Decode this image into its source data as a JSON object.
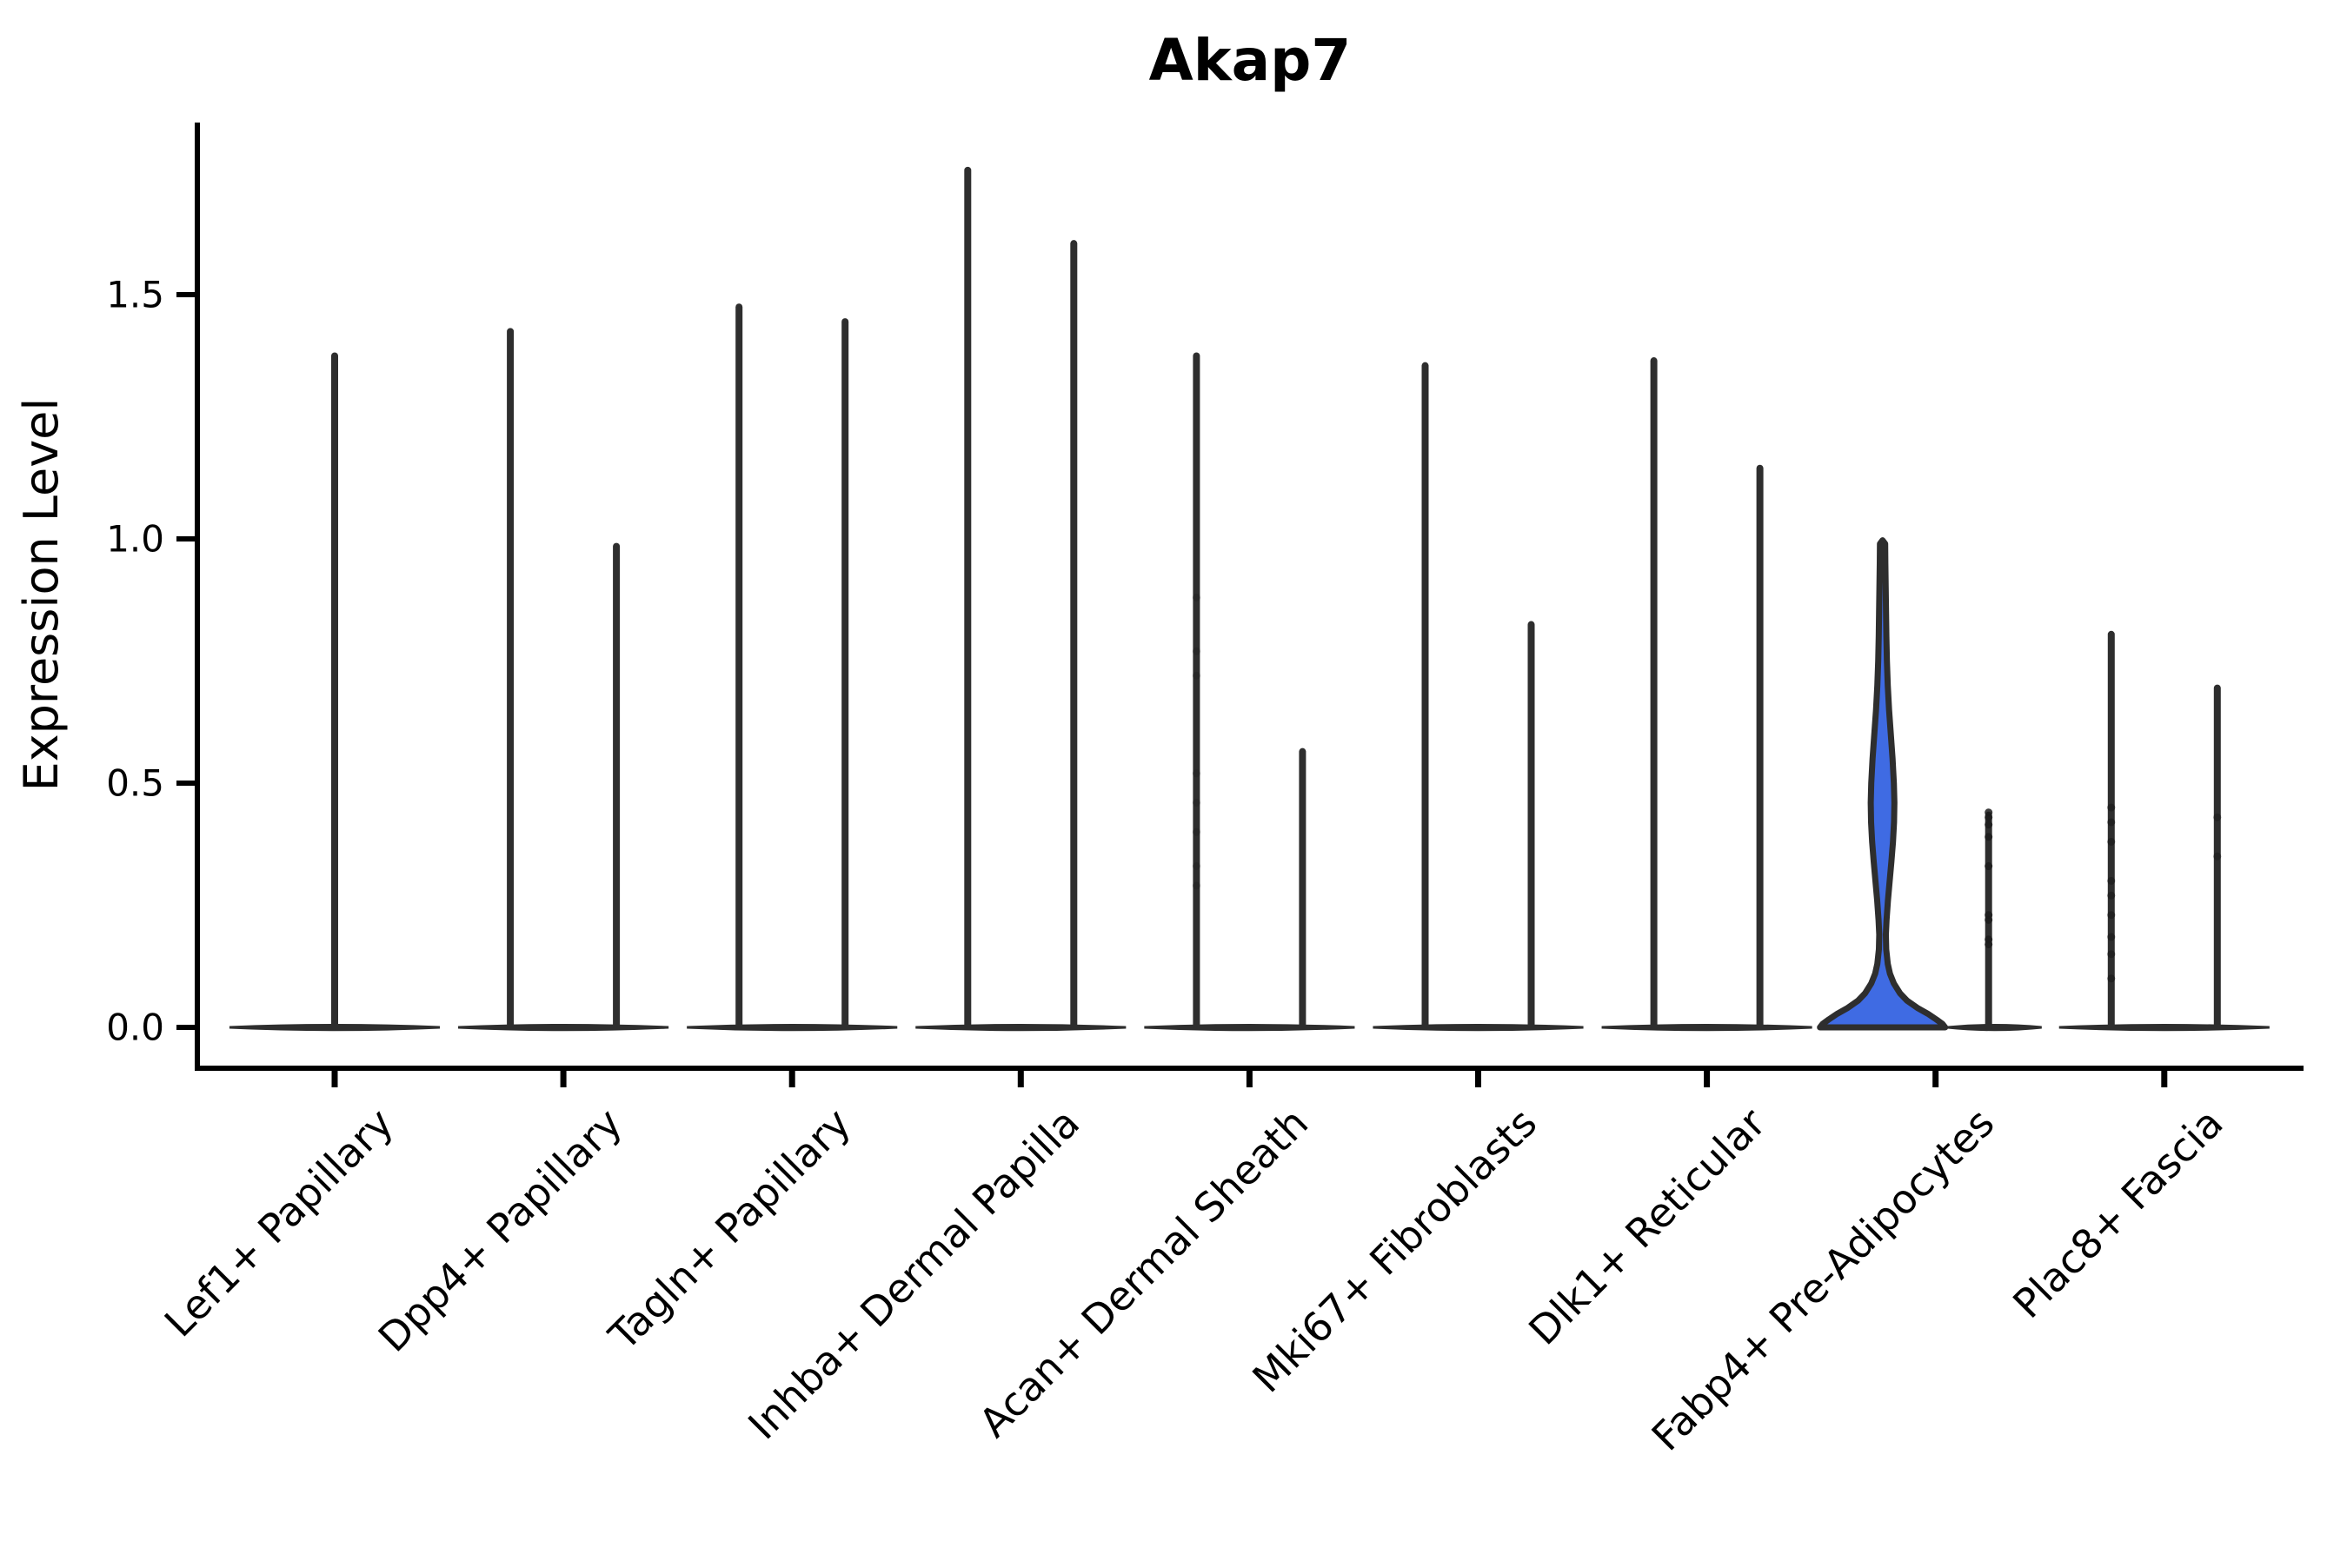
{
  "chart_data": {
    "type": "violin",
    "title": "Akap7",
    "ylabel": "Expression Level",
    "xlabel": "",
    "ytick_labels": [
      "0.0",
      "0.5",
      "1.0",
      "1.5"
    ],
    "ytick_values": [
      0.0,
      0.5,
      1.0,
      1.5
    ],
    "ylim": [
      0.0,
      1.85
    ],
    "grid": false,
    "legend": "none",
    "x_label_rotation_deg": 45,
    "colors": {
      "background": "#ffffff",
      "axis": "#000000",
      "violin_line": "#2e2e2e",
      "highlight_fill": "#3f6be3",
      "dot": "#1c1c1c",
      "text": "#000000"
    },
    "categories": [
      {
        "label": "Lef1+ Papillary",
        "base": [
          -121,
          121
        ],
        "violins": [
          {
            "kind": "spike",
            "offset": 0,
            "max": 1.38,
            "dots": []
          }
        ]
      },
      {
        "label": "Dpp4+ Papillary",
        "base": [
          -121,
          121
        ],
        "violins": [
          {
            "kind": "spike",
            "offset": -61,
            "max": 1.43,
            "dots": []
          },
          {
            "kind": "spike",
            "offset": 61,
            "max": 0.99,
            "dots": []
          }
        ]
      },
      {
        "label": "Tagln+ Papillary",
        "base": [
          -121,
          121
        ],
        "violins": [
          {
            "kind": "spike",
            "offset": -61,
            "max": 1.48,
            "dots": []
          },
          {
            "kind": "spike",
            "offset": 61,
            "max": 1.45,
            "dots": []
          }
        ]
      },
      {
        "label": "Inhba+ Dermal Papilla",
        "base": [
          -121,
          121
        ],
        "violins": [
          {
            "kind": "spike",
            "offset": -61,
            "max": 1.76,
            "dots": []
          },
          {
            "kind": "spike",
            "offset": 61,
            "max": 1.61,
            "dots": []
          }
        ]
      },
      {
        "label": "Acan+ Dermal Sheath",
        "base": [
          -121,
          121
        ],
        "violins": [
          {
            "kind": "spike",
            "offset": -61,
            "max": 1.38,
            "dots": [
              0.88,
              0.77,
              0.72,
              0.52,
              0.46,
              0.4,
              0.33,
              0.29
            ],
            "dot_opacity": 0.35
          },
          {
            "kind": "spike",
            "offset": 61,
            "max": 0.57,
            "dots": []
          }
        ]
      },
      {
        "label": "Mki67+ Fibroblasts",
        "base": [
          -121,
          121
        ],
        "violins": [
          {
            "kind": "spike",
            "offset": -61,
            "max": 1.36,
            "dots": []
          },
          {
            "kind": "spike",
            "offset": 61,
            "max": 0.83,
            "dots": []
          }
        ]
      },
      {
        "label": "Dlk1+ Reticular",
        "base": [
          -121,
          121
        ],
        "violins": [
          {
            "kind": "spike",
            "offset": -61,
            "max": 1.37,
            "dots": []
          },
          {
            "kind": "spike",
            "offset": 61,
            "max": 1.15,
            "dots": []
          }
        ]
      },
      {
        "label": "Fabp4+ Pre-Adipocytes",
        "base": [
          14,
          122
        ],
        "violins": [
          {
            "kind": "violin",
            "offset": -61,
            "max": 0.99,
            "fill": "highlight",
            "profile": [
              [
                0.99,
                3
              ],
              [
                0.95,
                3.2
              ],
              [
                0.9,
                3.6
              ],
              [
                0.85,
                4.0
              ],
              [
                0.8,
                4.4
              ],
              [
                0.75,
                5.0
              ],
              [
                0.7,
                6.0
              ],
              [
                0.65,
                7.5
              ],
              [
                0.6,
                9.5
              ],
              [
                0.55,
                11.5
              ],
              [
                0.5,
                13.0
              ],
              [
                0.46,
                13.6
              ],
              [
                0.42,
                13.2
              ],
              [
                0.38,
                12.0
              ],
              [
                0.34,
                10.2
              ],
              [
                0.3,
                8.2
              ],
              [
                0.26,
                6.2
              ],
              [
                0.22,
                4.6
              ],
              [
                0.19,
                3.8
              ],
              [
                0.16,
                4.2
              ],
              [
                0.13,
                6.0
              ],
              [
                0.11,
                8.5
              ],
              [
                0.09,
                13.0
              ],
              [
                0.07,
                20.0
              ],
              [
                0.055,
                28.0
              ],
              [
                0.04,
                40.0
              ],
              [
                0.028,
                52.0
              ],
              [
                0.016,
                62.0
              ],
              [
                0.007,
                69.0
              ],
              [
                0.0,
                72.0
              ]
            ],
            "dots": []
          },
          {
            "kind": "spike",
            "offset": 61,
            "max": 0.44,
            "dots": [
              0.44,
              0.43,
              0.415,
              0.39,
              0.33,
              0.23,
              0.22,
              0.18,
              0.17
            ],
            "dot_opacity": 0.85
          }
        ]
      },
      {
        "label": "Plac8+ Fascia",
        "base": [
          -121,
          121
        ],
        "violins": [
          {
            "kind": "spike",
            "offset": -61,
            "max": 0.81,
            "dots": [
              0.45,
              0.42,
              0.38,
              0.3,
              0.27,
              0.23,
              0.185,
              0.15,
              0.1
            ],
            "dot_opacity": 0.7
          },
          {
            "kind": "spike",
            "offset": 61,
            "max": 0.7,
            "dots": [
              0.43,
              0.35
            ],
            "dot_opacity": 0.6
          }
        ]
      }
    ]
  }
}
